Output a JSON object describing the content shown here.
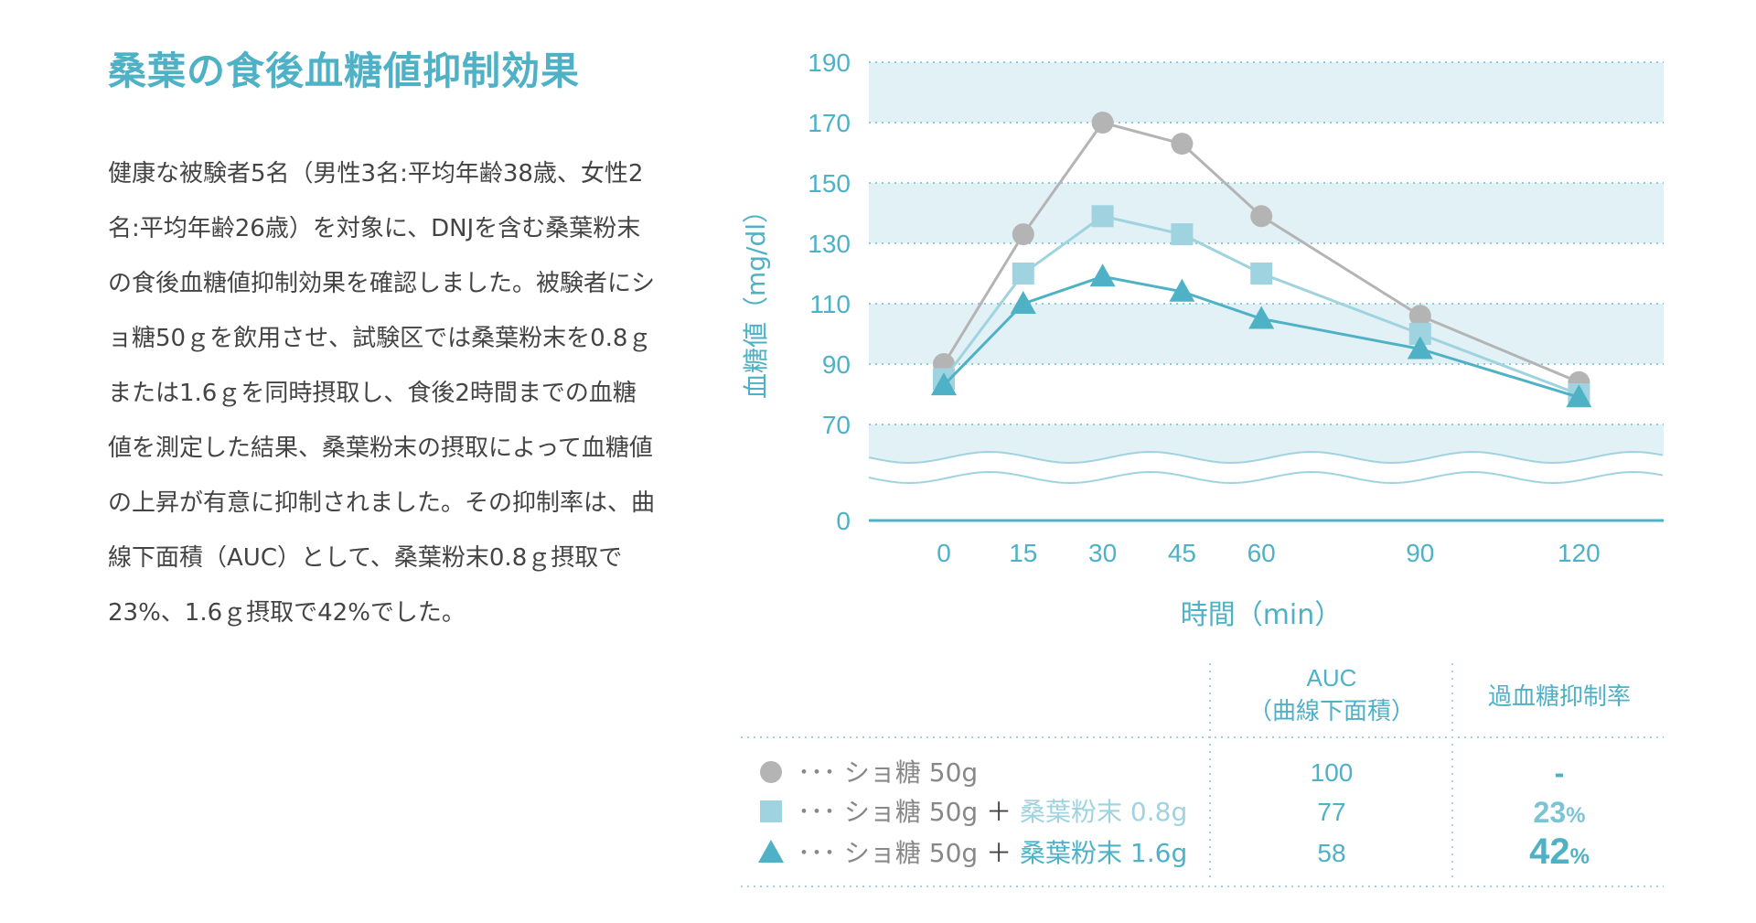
{
  "title": "桑葉の食後血糖値抑制効果",
  "paragraph": "健康な被験者5名（男性3名:平均年齢38歳、女性2名:平均年齢26歳）を対象に、DNJを含む桑葉粉末の食後血糖値抑制効果を確認しました。被験者にショ糖50ｇを飲用させ、試験区では桑葉粉末を0.8ｇまたは1.6ｇを同時摂取し、食後2時間までの血糖値を測定した結果、桑葉粉末の摂取によって血糖値の上昇が有意に抑制されました。その抑制率は、曲線下面積（AUC）として、桑葉粉末0.8ｇ摂取で23%、1.6ｇ摂取で42%でした。",
  "colors": {
    "accent": "#4fb1c6",
    "circle": "#b4b4b4",
    "square": "#9fd3df",
    "triangle": "#4fb1c6",
    "band": "#e1f1f5"
  },
  "chart_data": {
    "type": "line",
    "xlabel": "時間（min）",
    "ylabel": "血糖値（mg/dl）",
    "x": [
      0,
      15,
      30,
      45,
      60,
      90,
      120
    ],
    "x_ticks": [
      "0",
      "15",
      "30",
      "45",
      "60",
      "90",
      "120"
    ],
    "y_ticks": [
      "190",
      "170",
      "150",
      "130",
      "110",
      "90",
      "70",
      "0"
    ],
    "ylim": [
      70,
      190
    ],
    "axis_break": "between 0 and 70",
    "series": [
      {
        "name": "ショ糖50g",
        "marker": "circle",
        "values": [
          90,
          133,
          170,
          163,
          139,
          106,
          84
        ]
      },
      {
        "name": "ショ糖50g + 桑葉粉末0.8g",
        "marker": "square",
        "values": [
          85,
          120,
          139,
          133,
          120,
          100,
          80
        ]
      },
      {
        "name": "ショ糖50g + 桑葉粉末1.6g",
        "marker": "triangle",
        "values": [
          83,
          110,
          119,
          114,
          105,
          95,
          79
        ]
      }
    ]
  },
  "table": {
    "header_auc_1": "AUC",
    "header_auc_2": "（曲線下面積）",
    "header_rate": "過血糖抑制率",
    "rows": [
      {
        "base": "･･･ ショ糖 50g",
        "plus": "",
        "add": "",
        "auc": "100",
        "rate": "-",
        "unit": ""
      },
      {
        "base": "･･･ ショ糖 50g",
        "plus": "＋",
        "add": "桑葉粉末 0.8g",
        "auc": "77",
        "rate": "23",
        "unit": "%"
      },
      {
        "base": "･･･ ショ糖 50g",
        "plus": "＋",
        "add": "桑葉粉末 1.6g",
        "auc": "58",
        "rate": "42",
        "unit": "%"
      }
    ]
  }
}
